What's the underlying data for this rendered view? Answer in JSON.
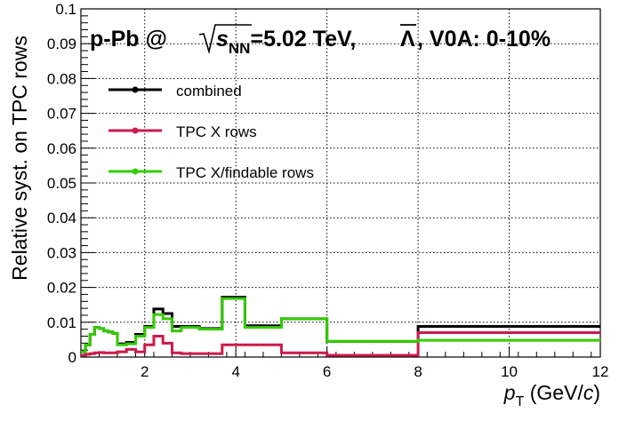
{
  "chart_data": {
    "type": "line",
    "title_parts": {
      "prefix": "p-Pb @ ",
      "s": "s",
      "nn": "NN",
      "energy": "=5.02 TeV, ",
      "lambda": "Λ",
      "suffix": ", V0A: 0-10%"
    },
    "xlabel": {
      "p": "p",
      "t": "T",
      "units_open": " (GeV/",
      "c": "c",
      "units_close": ")"
    },
    "ylabel": "Relative syst. on TPC rows",
    "xlim": [
      0.6,
      12
    ],
    "ylim": [
      0,
      0.1
    ],
    "x_ticks": [
      "2",
      "4",
      "6",
      "8",
      "10",
      "12"
    ],
    "y_ticks": [
      "0",
      "0.01",
      "0.02",
      "0.03",
      "0.04",
      "0.05",
      "0.06",
      "0.07",
      "0.08",
      "0.09",
      "0.1"
    ],
    "grid": true,
    "legend_position": "top-left",
    "bin_edges": [
      0.6,
      0.7,
      0.8,
      0.9,
      1.0,
      1.1,
      1.2,
      1.3,
      1.4,
      1.6,
      1.8,
      2.0,
      2.2,
      2.4,
      2.6,
      2.8,
      3.2,
      3.7,
      4.2,
      5.0,
      6.0,
      8.0,
      12.0
    ],
    "series": [
      {
        "name": "combined",
        "color": "#000000",
        "values": [
          0.0015,
          0.0035,
          0.0065,
          0.0085,
          0.0082,
          0.0075,
          0.0072,
          0.0068,
          0.0038,
          0.0042,
          0.0065,
          0.0088,
          0.0138,
          0.0125,
          0.0088,
          0.0088,
          0.0082,
          0.0172,
          0.009,
          0.011,
          0.0045,
          0.0088
        ]
      },
      {
        "name": "TPC X rows",
        "color": "#cc1a4d",
        "values": [
          0.0005,
          0.0008,
          0.001,
          0.0012,
          0.0013,
          0.0012,
          0.0012,
          0.0012,
          0.0015,
          0.0022,
          0.0015,
          0.0035,
          0.006,
          0.004,
          0.0012,
          0.001,
          0.001,
          0.0035,
          0.0035,
          0.0012,
          0.0005,
          0.007
        ]
      },
      {
        "name": "TPC X/findable rows",
        "color": "#33cc00",
        "values": [
          0.0015,
          0.0035,
          0.0065,
          0.0085,
          0.0082,
          0.0075,
          0.0072,
          0.0068,
          0.0035,
          0.0038,
          0.006,
          0.0085,
          0.0122,
          0.011,
          0.0075,
          0.0085,
          0.008,
          0.0168,
          0.0085,
          0.011,
          0.0045,
          0.0048
        ]
      }
    ]
  }
}
